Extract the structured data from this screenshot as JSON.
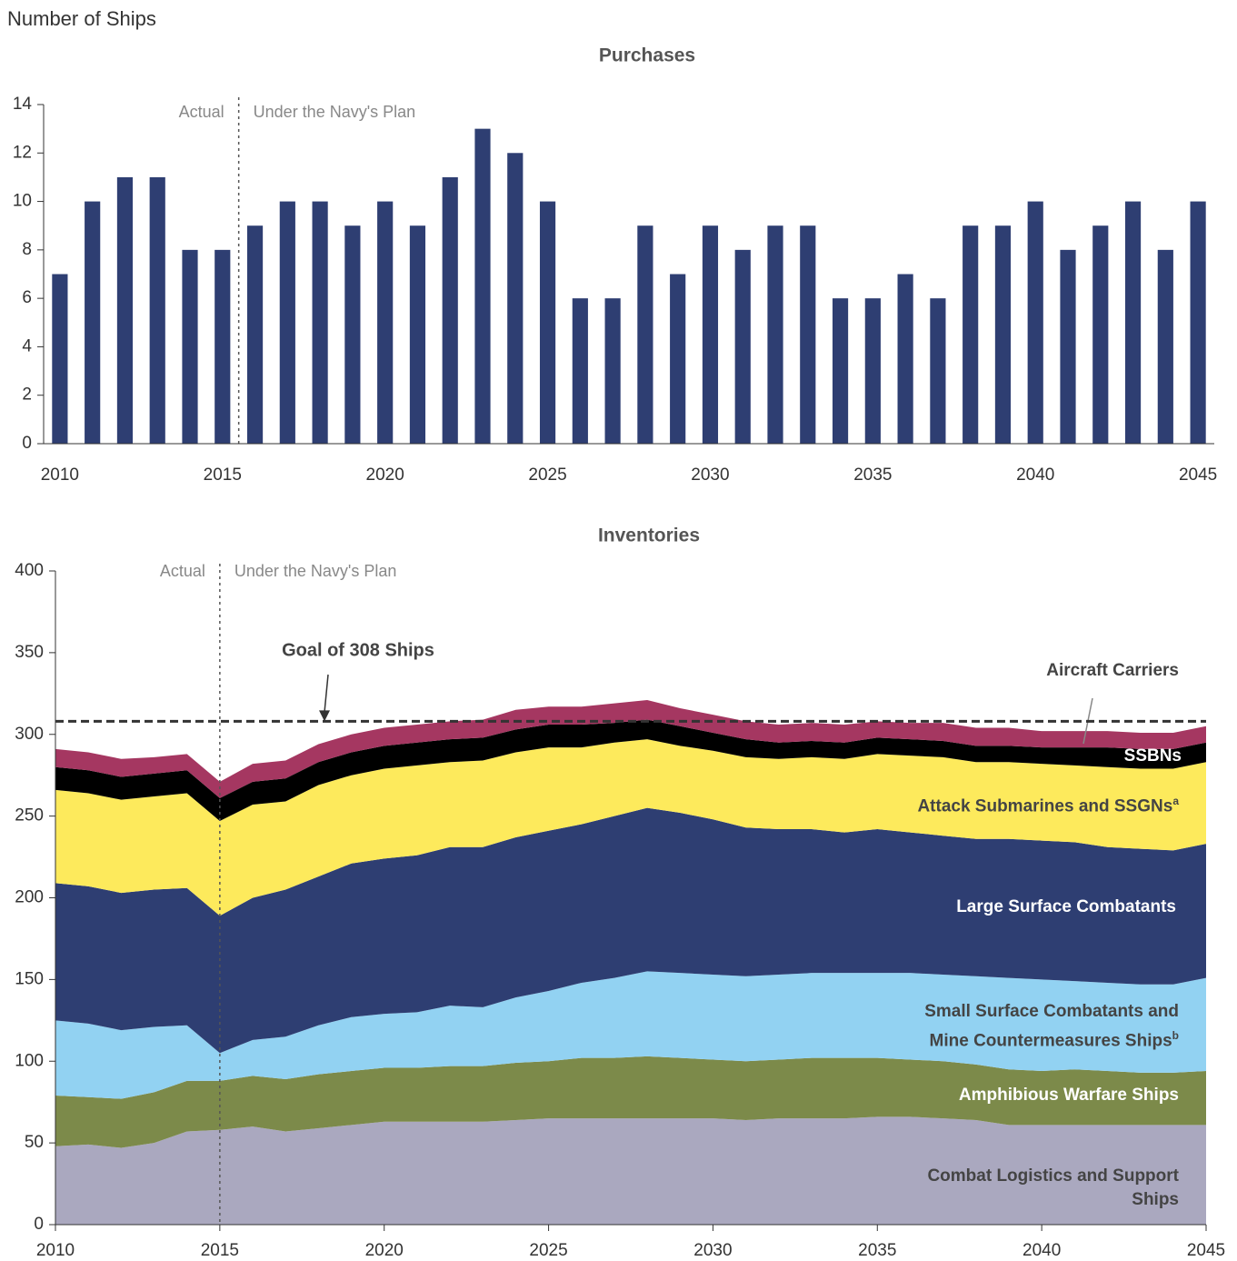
{
  "chart_data": [
    {
      "type": "bar",
      "title": "Purchases",
      "ylabel": "Number of Ships",
      "x": [
        2010,
        2011,
        2012,
        2013,
        2014,
        2015,
        2016,
        2017,
        2018,
        2019,
        2020,
        2021,
        2022,
        2023,
        2024,
        2025,
        2026,
        2027,
        2028,
        2029,
        2030,
        2031,
        2032,
        2033,
        2034,
        2035,
        2036,
        2037,
        2038,
        2039,
        2040,
        2041,
        2042,
        2043,
        2044,
        2045
      ],
      "values": [
        7,
        10,
        11,
        11,
        8,
        8,
        9,
        10,
        10,
        9,
        10,
        9,
        11,
        13,
        12,
        10,
        6,
        6,
        9,
        7,
        9,
        8,
        9,
        9,
        6,
        6,
        7,
        6,
        9,
        9,
        10,
        8,
        9,
        10,
        8,
        10
      ],
      "color": "#2e3e72",
      "xlim": [
        2009.5,
        2045.5
      ],
      "xticks": [
        2010,
        2015,
        2020,
        2025,
        2030,
        2035,
        2040,
        2045
      ],
      "ylim": [
        0,
        14
      ],
      "yticks": [
        0,
        2,
        4,
        6,
        8,
        10,
        12,
        14
      ],
      "grid": false,
      "divider": 2015.5,
      "annotations": {
        "left": "Actual",
        "right": "Under the Navy's Plan"
      }
    },
    {
      "type": "stacked_area",
      "title": "Inventories",
      "x": [
        2010,
        2011,
        2012,
        2013,
        2014,
        2015,
        2016,
        2017,
        2018,
        2019,
        2020,
        2021,
        2022,
        2023,
        2024,
        2025,
        2026,
        2027,
        2028,
        2029,
        2030,
        2031,
        2032,
        2033,
        2034,
        2035,
        2036,
        2037,
        2038,
        2039,
        2040,
        2041,
        2042,
        2043,
        2044,
        2045
      ],
      "series": [
        {
          "name": "Combat Logistics and Support Ships",
          "color": "#aaa8bf",
          "values": [
            48,
            49,
            47,
            50,
            57,
            58,
            60,
            57,
            59,
            61,
            63,
            63,
            63,
            63,
            64,
            65,
            65,
            65,
            65,
            65,
            65,
            64,
            65,
            65,
            65,
            66,
            66,
            65,
            64,
            61,
            61,
            61,
            61,
            61,
            61,
            61
          ]
        },
        {
          "name": "Amphibious Warfare Ships",
          "color": "#7c8a4a",
          "values": [
            31,
            29,
            30,
            31,
            31,
            30,
            31,
            32,
            33,
            33,
            33,
            33,
            34,
            34,
            35,
            35,
            37,
            37,
            38,
            37,
            36,
            36,
            36,
            37,
            37,
            36,
            35,
            35,
            34,
            34,
            33,
            34,
            33,
            32,
            32,
            33
          ]
        },
        {
          "name": "Small Surface Combatants and Mine Countermeasures Ships",
          "note": "b",
          "color": "#92d2f2",
          "values": [
            46,
            45,
            42,
            40,
            34,
            17,
            22,
            26,
            30,
            33,
            33,
            34,
            37,
            36,
            40,
            43,
            46,
            49,
            52,
            52,
            52,
            52,
            52,
            52,
            52,
            52,
            53,
            53,
            54,
            56,
            56,
            54,
            54,
            54,
            54,
            57
          ]
        },
        {
          "name": "Large Surface Combatants",
          "color": "#2e3e72",
          "values": [
            84,
            84,
            84,
            84,
            84,
            84,
            87,
            90,
            91,
            94,
            95,
            96,
            97,
            98,
            98,
            98,
            97,
            99,
            100,
            98,
            95,
            91,
            89,
            88,
            86,
            88,
            86,
            85,
            84,
            85,
            85,
            85,
            83,
            83,
            82,
            82
          ]
        },
        {
          "name": "Attack Submarines and SSGNs",
          "note": "a",
          "color": "#fdea5c",
          "values": [
            57,
            57,
            57,
            57,
            58,
            58,
            57,
            54,
            56,
            54,
            55,
            55,
            52,
            53,
            52,
            51,
            47,
            45,
            42,
            41,
            42,
            43,
            43,
            44,
            45,
            46,
            47,
            48,
            47,
            47,
            47,
            47,
            49,
            49,
            50,
            50
          ]
        },
        {
          "name": "SSBNs",
          "color": "#000000",
          "values": [
            14,
            14,
            14,
            14,
            14,
            14,
            14,
            14,
            14,
            14,
            14,
            14,
            14,
            14,
            14,
            14,
            14,
            12,
            12,
            12,
            11,
            11,
            10,
            10,
            10,
            10,
            10,
            10,
            10,
            10,
            10,
            11,
            12,
            12,
            12,
            12
          ]
        },
        {
          "name": "Aircraft Carriers",
          "color": "#a53761",
          "values": [
            11,
            11,
            11,
            10,
            10,
            10,
            11,
            11,
            11,
            11,
            11,
            11,
            11,
            11,
            12,
            11,
            11,
            12,
            12,
            11,
            11,
            11,
            11,
            11,
            11,
            10,
            10,
            11,
            11,
            11,
            10,
            10,
            10,
            10,
            10,
            10
          ]
        }
      ],
      "xlim": [
        2010,
        2045
      ],
      "xticks": [
        2010,
        2015,
        2020,
        2025,
        2030,
        2035,
        2040,
        2045
      ],
      "ylim": [
        0,
        400
      ],
      "yticks": [
        0,
        50,
        100,
        150,
        200,
        250,
        300,
        350,
        400
      ],
      "grid": false,
      "divider": 2015,
      "annotations": {
        "left": "Actual",
        "right": "Under the Navy's Plan"
      },
      "goal": {
        "value": 308,
        "label": "Goal of 308 Ships"
      }
    }
  ]
}
